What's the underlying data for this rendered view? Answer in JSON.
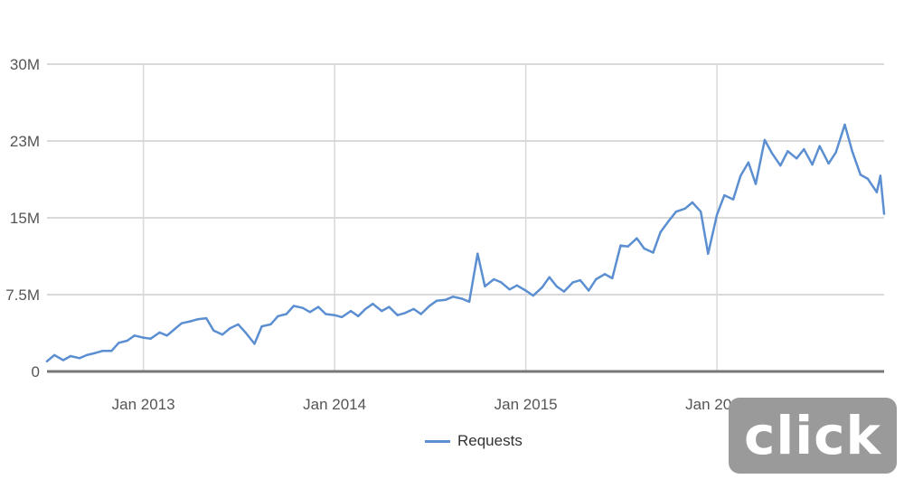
{
  "chart_data": {
    "type": "line",
    "title": "",
    "xlabel": "",
    "ylabel": "",
    "ylim": [
      0,
      30000000
    ],
    "yticks": [
      {
        "value": 0,
        "label": "0"
      },
      {
        "value": 7500000,
        "label": "7.5M"
      },
      {
        "value": 15000000,
        "label": "15M"
      },
      {
        "value": 22500000,
        "label": "23M"
      },
      {
        "value": 30000000,
        "label": "30M"
      }
    ],
    "xlim": [
      "2012-07-01",
      "2016-11-15"
    ],
    "xticks": [
      {
        "date": "2013-01-01",
        "label": "Jan 2013"
      },
      {
        "date": "2014-01-01",
        "label": "Jan 2014"
      },
      {
        "date": "2015-01-01",
        "label": "Jan 2015"
      },
      {
        "date": "2016-01-01",
        "label": "Jan 2016"
      }
    ],
    "grid": true,
    "legend_position": "bottom",
    "series": [
      {
        "name": "Requests",
        "color": "#5b8fd1",
        "points": [
          [
            "2012-07-01",
            1000000
          ],
          [
            "2012-07-15",
            1600000
          ],
          [
            "2012-08-01",
            1100000
          ],
          [
            "2012-08-15",
            1500000
          ],
          [
            "2012-09-01",
            1300000
          ],
          [
            "2012-09-15",
            1600000
          ],
          [
            "2012-10-01",
            1800000
          ],
          [
            "2012-10-15",
            2000000
          ],
          [
            "2012-11-01",
            2000000
          ],
          [
            "2012-11-15",
            2800000
          ],
          [
            "2012-12-01",
            3000000
          ],
          [
            "2012-12-15",
            3500000
          ],
          [
            "2013-01-01",
            3300000
          ],
          [
            "2013-01-15",
            3200000
          ],
          [
            "2013-02-01",
            3800000
          ],
          [
            "2013-02-15",
            3500000
          ],
          [
            "2013-03-01",
            4100000
          ],
          [
            "2013-03-15",
            4700000
          ],
          [
            "2013-04-01",
            4900000
          ],
          [
            "2013-04-15",
            5100000
          ],
          [
            "2013-05-01",
            5200000
          ],
          [
            "2013-05-15",
            4000000
          ],
          [
            "2013-06-01",
            3600000
          ],
          [
            "2013-06-15",
            4200000
          ],
          [
            "2013-07-01",
            4600000
          ],
          [
            "2013-07-15",
            3800000
          ],
          [
            "2013-08-01",
            2700000
          ],
          [
            "2013-08-15",
            4400000
          ],
          [
            "2013-09-01",
            4600000
          ],
          [
            "2013-09-15",
            5400000
          ],
          [
            "2013-10-01",
            5600000
          ],
          [
            "2013-10-15",
            6400000
          ],
          [
            "2013-11-01",
            6200000
          ],
          [
            "2013-11-15",
            5800000
          ],
          [
            "2013-12-01",
            6300000
          ],
          [
            "2013-12-15",
            5600000
          ],
          [
            "2014-01-01",
            5500000
          ],
          [
            "2014-01-15",
            5300000
          ],
          [
            "2014-02-01",
            5900000
          ],
          [
            "2014-02-15",
            5400000
          ],
          [
            "2014-03-01",
            6100000
          ],
          [
            "2014-03-15",
            6600000
          ],
          [
            "2014-04-01",
            5900000
          ],
          [
            "2014-04-15",
            6300000
          ],
          [
            "2014-05-01",
            5500000
          ],
          [
            "2014-05-15",
            5700000
          ],
          [
            "2014-06-01",
            6100000
          ],
          [
            "2014-06-15",
            5600000
          ],
          [
            "2014-07-01",
            6400000
          ],
          [
            "2014-07-15",
            6900000
          ],
          [
            "2014-08-01",
            7000000
          ],
          [
            "2014-08-15",
            7300000
          ],
          [
            "2014-09-01",
            7100000
          ],
          [
            "2014-09-15",
            6800000
          ],
          [
            "2014-10-01",
            11500000
          ],
          [
            "2014-10-15",
            8300000
          ],
          [
            "2014-11-01",
            9000000
          ],
          [
            "2014-11-15",
            8700000
          ],
          [
            "2014-12-01",
            8000000
          ],
          [
            "2014-12-15",
            8400000
          ],
          [
            "2015-01-01",
            7900000
          ],
          [
            "2015-01-15",
            7400000
          ],
          [
            "2015-02-01",
            8200000
          ],
          [
            "2015-02-15",
            9200000
          ],
          [
            "2015-03-01",
            8300000
          ],
          [
            "2015-03-15",
            7800000
          ],
          [
            "2015-04-01",
            8700000
          ],
          [
            "2015-04-15",
            8900000
          ],
          [
            "2015-05-01",
            7900000
          ],
          [
            "2015-05-15",
            9000000
          ],
          [
            "2015-06-01",
            9500000
          ],
          [
            "2015-06-15",
            9100000
          ],
          [
            "2015-07-01",
            12300000
          ],
          [
            "2015-07-15",
            12200000
          ],
          [
            "2015-08-01",
            13000000
          ],
          [
            "2015-08-15",
            12000000
          ],
          [
            "2015-09-01",
            11600000
          ],
          [
            "2015-09-15",
            13600000
          ],
          [
            "2015-10-01",
            14700000
          ],
          [
            "2015-10-15",
            15600000
          ],
          [
            "2015-11-01",
            15900000
          ],
          [
            "2015-11-15",
            16500000
          ],
          [
            "2015-12-01",
            15600000
          ],
          [
            "2015-12-15",
            11500000
          ],
          [
            "2016-01-01",
            15300000
          ],
          [
            "2016-01-15",
            17200000
          ],
          [
            "2016-02-01",
            16800000
          ],
          [
            "2016-02-15",
            19100000
          ],
          [
            "2016-03-01",
            20400000
          ],
          [
            "2016-03-15",
            18300000
          ],
          [
            "2016-04-01",
            22600000
          ],
          [
            "2016-04-15",
            21300000
          ],
          [
            "2016-05-01",
            20100000
          ],
          [
            "2016-05-15",
            21500000
          ],
          [
            "2016-06-01",
            20800000
          ],
          [
            "2016-06-15",
            21700000
          ],
          [
            "2016-07-01",
            20200000
          ],
          [
            "2016-07-15",
            22000000
          ],
          [
            "2016-08-01",
            20300000
          ],
          [
            "2016-08-15",
            21400000
          ],
          [
            "2016-09-01",
            24100000
          ],
          [
            "2016-09-15",
            21500000
          ],
          [
            "2016-10-01",
            19200000
          ],
          [
            "2016-10-15",
            18800000
          ],
          [
            "2016-11-01",
            17500000
          ],
          [
            "2016-11-08",
            19100000
          ],
          [
            "2016-11-15",
            15400000
          ]
        ]
      }
    ]
  },
  "legend": {
    "label": "Requests"
  },
  "watermark": {
    "text": "click"
  }
}
